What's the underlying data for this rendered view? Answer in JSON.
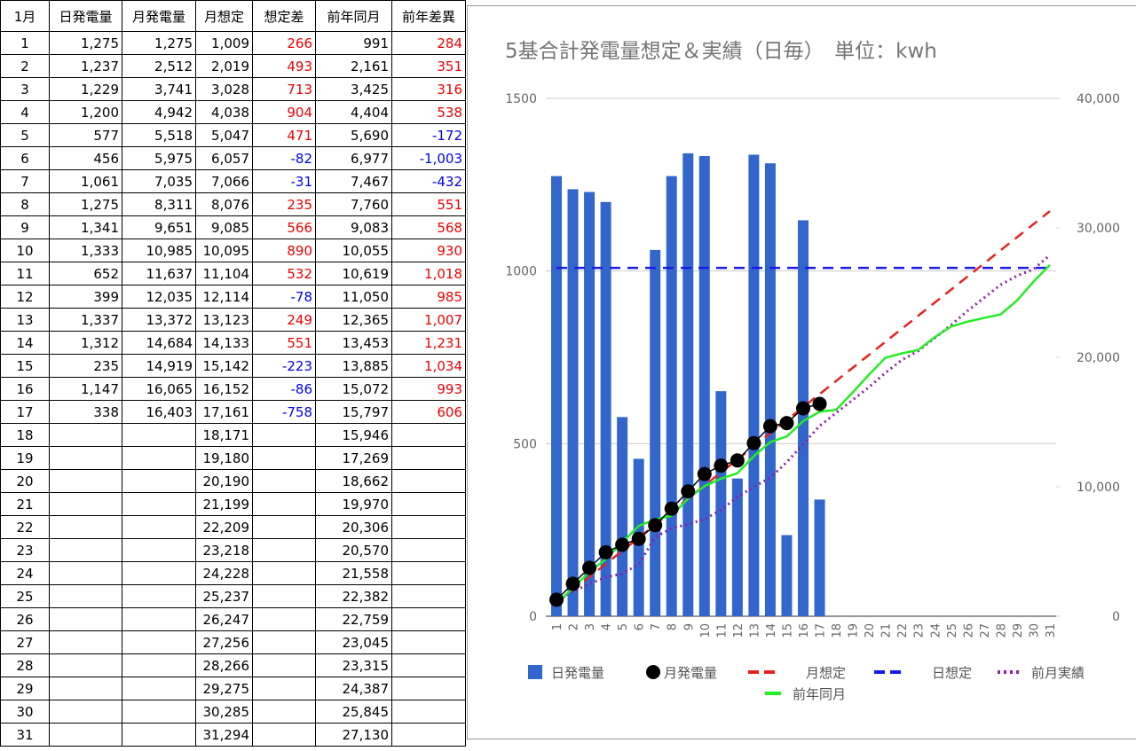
{
  "table": {
    "header": [
      "1月",
      "日発電量",
      "月発電量",
      "月想定",
      "想定差",
      "前年同月",
      "前年差異"
    ],
    "rows": [
      [
        "1",
        "1,275",
        "1,275",
        "1,009",
        "266",
        "991",
        "284"
      ],
      [
        "2",
        "1,237",
        "2,512",
        "2,019",
        "493",
        "2,161",
        "351"
      ],
      [
        "3",
        "1,229",
        "3,741",
        "3,028",
        "713",
        "3,425",
        "316"
      ],
      [
        "4",
        "1,200",
        "4,942",
        "4,038",
        "904",
        "4,404",
        "538"
      ],
      [
        "5",
        "577",
        "5,518",
        "5,047",
        "471",
        "5,690",
        "-172"
      ],
      [
        "6",
        "456",
        "5,975",
        "6,057",
        "-82",
        "6,977",
        "-1,003"
      ],
      [
        "7",
        "1,061",
        "7,035",
        "7,066",
        "-31",
        "7,467",
        "-432"
      ],
      [
        "8",
        "1,275",
        "8,311",
        "8,076",
        "235",
        "7,760",
        "551"
      ],
      [
        "9",
        "1,341",
        "9,651",
        "9,085",
        "566",
        "9,083",
        "568"
      ],
      [
        "10",
        "1,333",
        "10,985",
        "10,095",
        "890",
        "10,055",
        "930"
      ],
      [
        "11",
        "652",
        "11,637",
        "11,104",
        "532",
        "10,619",
        "1,018"
      ],
      [
        "12",
        "399",
        "12,035",
        "12,114",
        "-78",
        "11,050",
        "985"
      ],
      [
        "13",
        "1,337",
        "13,372",
        "13,123",
        "249",
        "12,365",
        "1,007"
      ],
      [
        "14",
        "1,312",
        "14,684",
        "14,133",
        "551",
        "13,453",
        "1,231"
      ],
      [
        "15",
        "235",
        "14,919",
        "15,142",
        "-223",
        "13,885",
        "1,034"
      ],
      [
        "16",
        "1,147",
        "16,065",
        "16,152",
        "-86",
        "15,072",
        "993"
      ],
      [
        "17",
        "338",
        "16,403",
        "17,161",
        "-758",
        "15,797",
        "606"
      ],
      [
        "18",
        null,
        null,
        "18,171",
        null,
        "15,946",
        null
      ],
      [
        "19",
        null,
        null,
        "19,180",
        null,
        "17,269",
        null
      ],
      [
        "20",
        null,
        null,
        "20,190",
        null,
        "18,662",
        null
      ],
      [
        "21",
        null,
        null,
        "21,199",
        null,
        "19,970",
        null
      ],
      [
        "22",
        null,
        null,
        "22,209",
        null,
        "20,306",
        null
      ],
      [
        "23",
        null,
        null,
        "23,218",
        null,
        "20,570",
        null
      ],
      [
        "24",
        null,
        null,
        "24,228",
        null,
        "21,558",
        null
      ],
      [
        "25",
        null,
        null,
        "25,237",
        null,
        "22,382",
        null
      ],
      [
        "26",
        null,
        null,
        "26,247",
        null,
        "22,759",
        null
      ],
      [
        "27",
        null,
        null,
        "27,256",
        null,
        "23,045",
        null
      ],
      [
        "28",
        null,
        null,
        "28,266",
        null,
        "23,315",
        null
      ],
      [
        "29",
        null,
        null,
        "29,275",
        null,
        "24,387",
        null
      ],
      [
        "30",
        null,
        null,
        "30,285",
        null,
        "25,845",
        null
      ],
      [
        "31",
        null,
        null,
        "31,294",
        null,
        "27,130",
        null
      ]
    ]
  },
  "chart_data": {
    "type": "combo",
    "title": "5基合計発電量想定＆実績（日毎）　単位：kwh",
    "categories": [
      "1",
      "2",
      "3",
      "4",
      "5",
      "6",
      "7",
      "8",
      "9",
      "10",
      "11",
      "12",
      "13",
      "14",
      "15",
      "16",
      "17",
      "18",
      "19",
      "20",
      "21",
      "22",
      "23",
      "24",
      "25",
      "26",
      "27",
      "28",
      "29",
      "30",
      "31"
    ],
    "ylim": [
      0,
      1500
    ],
    "yticks": [
      0,
      500,
      1000,
      1500
    ],
    "y2lim": [
      0,
      40000
    ],
    "y2ticks": [
      0,
      {
        "value": 10000,
        "label": "10,000"
      },
      {
        "value": 20000,
        "label": "20,000"
      },
      {
        "value": 30000,
        "label": "30,000"
      },
      {
        "value": 40000,
        "label": "40,000"
      }
    ],
    "grid": true,
    "legend": "bottom",
    "series": [
      {
        "name": "日発電量",
        "type": "bar",
        "color": "#3366cc",
        "axis": "y",
        "values": [
          1275,
          1237,
          1229,
          1200,
          577,
          456,
          1061,
          1275,
          1341,
          1333,
          652,
          399,
          1337,
          1312,
          235,
          1147,
          338,
          null,
          null,
          null,
          null,
          null,
          null,
          null,
          null,
          null,
          null,
          null,
          null,
          null,
          null
        ]
      },
      {
        "name": "月発電量",
        "type": "scatter",
        "color": "#000000",
        "axis": "y2",
        "values": [
          1275,
          2512,
          3741,
          4942,
          5518,
          5975,
          7035,
          8311,
          9651,
          10985,
          11637,
          12035,
          13372,
          14684,
          14919,
          16065,
          16403,
          null,
          null,
          null,
          null,
          null,
          null,
          null,
          null,
          null,
          null,
          null,
          null,
          null,
          null
        ]
      },
      {
        "name": "月想定",
        "type": "line",
        "style": "dashed",
        "color": "#e8231f",
        "axis": "y2",
        "values": [
          1009,
          2019,
          3028,
          4038,
          5047,
          6057,
          7066,
          8076,
          9085,
          10095,
          11104,
          12114,
          13123,
          14133,
          15142,
          16152,
          17161,
          18171,
          19180,
          20190,
          21199,
          22209,
          23218,
          24228,
          25237,
          26247,
          27256,
          28266,
          29275,
          30285,
          31294
        ]
      },
      {
        "name": "日想定",
        "type": "line",
        "style": "dashed",
        "color": "#1a1ae6",
        "axis": "y",
        "values": [
          1009,
          1009,
          1009,
          1009,
          1009,
          1009,
          1009,
          1009,
          1009,
          1009,
          1009,
          1009,
          1009,
          1009,
          1009,
          1009,
          1009,
          1009,
          1009,
          1009,
          1009,
          1009,
          1009,
          1009,
          1009,
          1009,
          1009,
          1009,
          1009,
          1009,
          1009
        ]
      },
      {
        "name": "前月実績",
        "type": "line",
        "style": "dotted",
        "color": "#8e1fa3",
        "axis": "y2",
        "values": [
          1300,
          1900,
          2500,
          3000,
          3300,
          4000,
          6100,
          6800,
          7100,
          7500,
          8200,
          9200,
          10000,
          10700,
          11900,
          13300,
          14700,
          15700,
          16700,
          17700,
          18800,
          19800,
          20500,
          21500,
          22500,
          23600,
          24600,
          25600,
          26300,
          26800,
          27900
        ]
      },
      {
        "name": "前年同月",
        "type": "line",
        "style": "solid",
        "color": "#22ee22",
        "axis": "y2",
        "values": [
          991,
          2161,
          3425,
          4404,
          5690,
          6977,
          7467,
          7760,
          9083,
          10055,
          10619,
          11050,
          12365,
          13453,
          13885,
          15072,
          15797,
          15946,
          17269,
          18662,
          19970,
          20306,
          20570,
          21558,
          22382,
          22759,
          23045,
          23315,
          24387,
          25845,
          27130
        ]
      }
    ]
  }
}
